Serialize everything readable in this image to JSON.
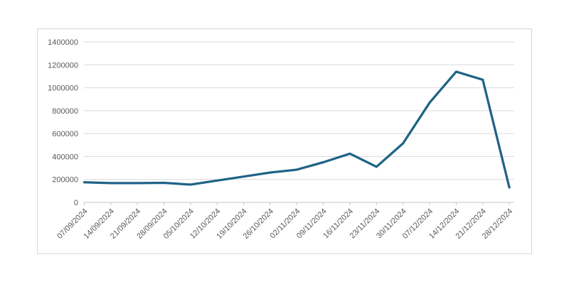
{
  "chart_data": {
    "type": "line",
    "title": "",
    "xlabel": "",
    "ylabel": "",
    "legend": "none",
    "grid": true,
    "categories": [
      "07/09/2024",
      "14/09/2024",
      "21/09/2024",
      "28/09/2024",
      "05/10/2024",
      "12/10/2024",
      "19/10/2024",
      "26/10/2024",
      "02/11/2024",
      "09/11/2024",
      "16/11/2024",
      "23/11/2024",
      "30/11/2024",
      "07/12/2024",
      "14/12/2024",
      "21/12/2024",
      "28/12/2024"
    ],
    "values": [
      175000,
      168000,
      168000,
      170000,
      155000,
      190000,
      225000,
      260000,
      285000,
      350000,
      425000,
      310000,
      515000,
      870000,
      1140000,
      1070000,
      130000
    ],
    "ylim": [
      0,
      1400000
    ],
    "yticks": [
      0,
      200000,
      400000,
      600000,
      800000,
      1000000,
      1200000,
      1400000
    ],
    "colors": {
      "line": "#1f6386",
      "grid": "#d9d9d9",
      "axis": "#c6c6c6",
      "tick": "#c6c6c6",
      "text": "#595959",
      "panel_border": "#d6d6d6",
      "background": "#ffffff"
    }
  }
}
